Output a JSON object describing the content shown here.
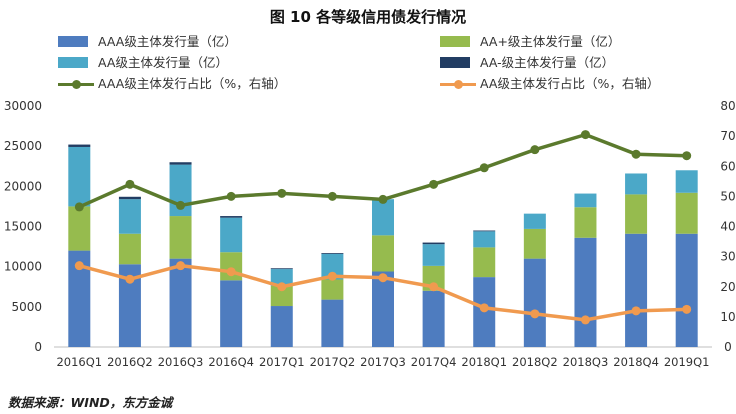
{
  "title": "图 10   各等级信用债发行情况",
  "source": "数据来源：WIND，东方金诚",
  "colors": {
    "AAA": "#4e7cbf",
    "AA_plus": "#96bb4e",
    "AA": "#4ba8c8",
    "AA_minus": "#223d63",
    "AAA_ratio": "#5b7a2d",
    "AA_ratio": "#f09a4f",
    "axis": "#bfbfbf"
  },
  "legend": [
    {
      "label": "AAA级主体发行量（亿）",
      "kind": "bar",
      "color_key": "AAA"
    },
    {
      "label": "AA+级主体发行量（亿）",
      "kind": "bar",
      "color_key": "AA_plus"
    },
    {
      "label": "AA级主体发行量（亿）",
      "kind": "bar",
      "color_key": "AA"
    },
    {
      "label": "AA-级主体发行量（亿）",
      "kind": "bar",
      "color_key": "AA_minus"
    },
    {
      "label": "AAA级主体发行占比（%，右轴）",
      "kind": "line",
      "color_key": "AAA_ratio"
    },
    {
      "label": "AA级主体发行占比（%，右轴）",
      "kind": "line",
      "color_key": "AA_ratio"
    }
  ],
  "chart_data": {
    "type": "bar",
    "title": "图 10   各等级信用债发行情况",
    "categories": [
      "2016Q1",
      "2016Q2",
      "2016Q3",
      "2016Q4",
      "2017Q1",
      "2017Q2",
      "2017Q3",
      "2017Q4",
      "2018Q1",
      "2018Q2",
      "2018Q3",
      "2018Q4",
      "2019Q1"
    ],
    "series": [
      {
        "name": "AAA级主体发行量（亿）",
        "type": "stacked-bar",
        "values": [
          12000,
          10300,
          11000,
          8300,
          5100,
          5900,
          9400,
          7000,
          8700,
          11000,
          13600,
          14100,
          14100
        ]
      },
      {
        "name": "AA+级主体发行量（亿）",
        "type": "stacked-bar",
        "values": [
          5500,
          3800,
          5300,
          3500,
          2500,
          2500,
          4500,
          3100,
          3700,
          3700,
          3800,
          4900,
          5100
        ]
      },
      {
        "name": "AA级主体发行量（亿）",
        "type": "stacked-bar",
        "values": [
          7400,
          4300,
          6400,
          4300,
          2100,
          3200,
          4500,
          2700,
          2000,
          1900,
          1700,
          2600,
          2800
        ]
      },
      {
        "name": "AA-级主体发行量（亿）",
        "type": "stacked-bar",
        "values": [
          300,
          300,
          300,
          200,
          100,
          100,
          0,
          200,
          100,
          0,
          0,
          0,
          0
        ]
      },
      {
        "name": "AAA级主体发行占比（%，右轴）",
        "type": "line",
        "axis": "right",
        "values": [
          46.5,
          54,
          47,
          50,
          51,
          50,
          49,
          54,
          59.5,
          65.5,
          70.5,
          64,
          63.5
        ]
      },
      {
        "name": "AA级主体发行占比（%，右轴）",
        "type": "line",
        "axis": "right",
        "values": [
          27,
          22.5,
          27,
          25,
          20,
          23.5,
          23,
          20,
          13,
          11,
          9,
          12,
          12.5
        ]
      }
    ],
    "ylim_left": [
      0,
      30000
    ],
    "yticks_left": [
      "0",
      "5000",
      "10000",
      "15000",
      "20000",
      "25000",
      "30000"
    ],
    "ylim_right": [
      0,
      80
    ],
    "yticks_right": [
      "0",
      "10",
      "20",
      "30",
      "40",
      "50",
      "60",
      "70",
      "80"
    ],
    "xlabel": "",
    "ylabel": "",
    "grid": false,
    "legend_position": "top"
  }
}
